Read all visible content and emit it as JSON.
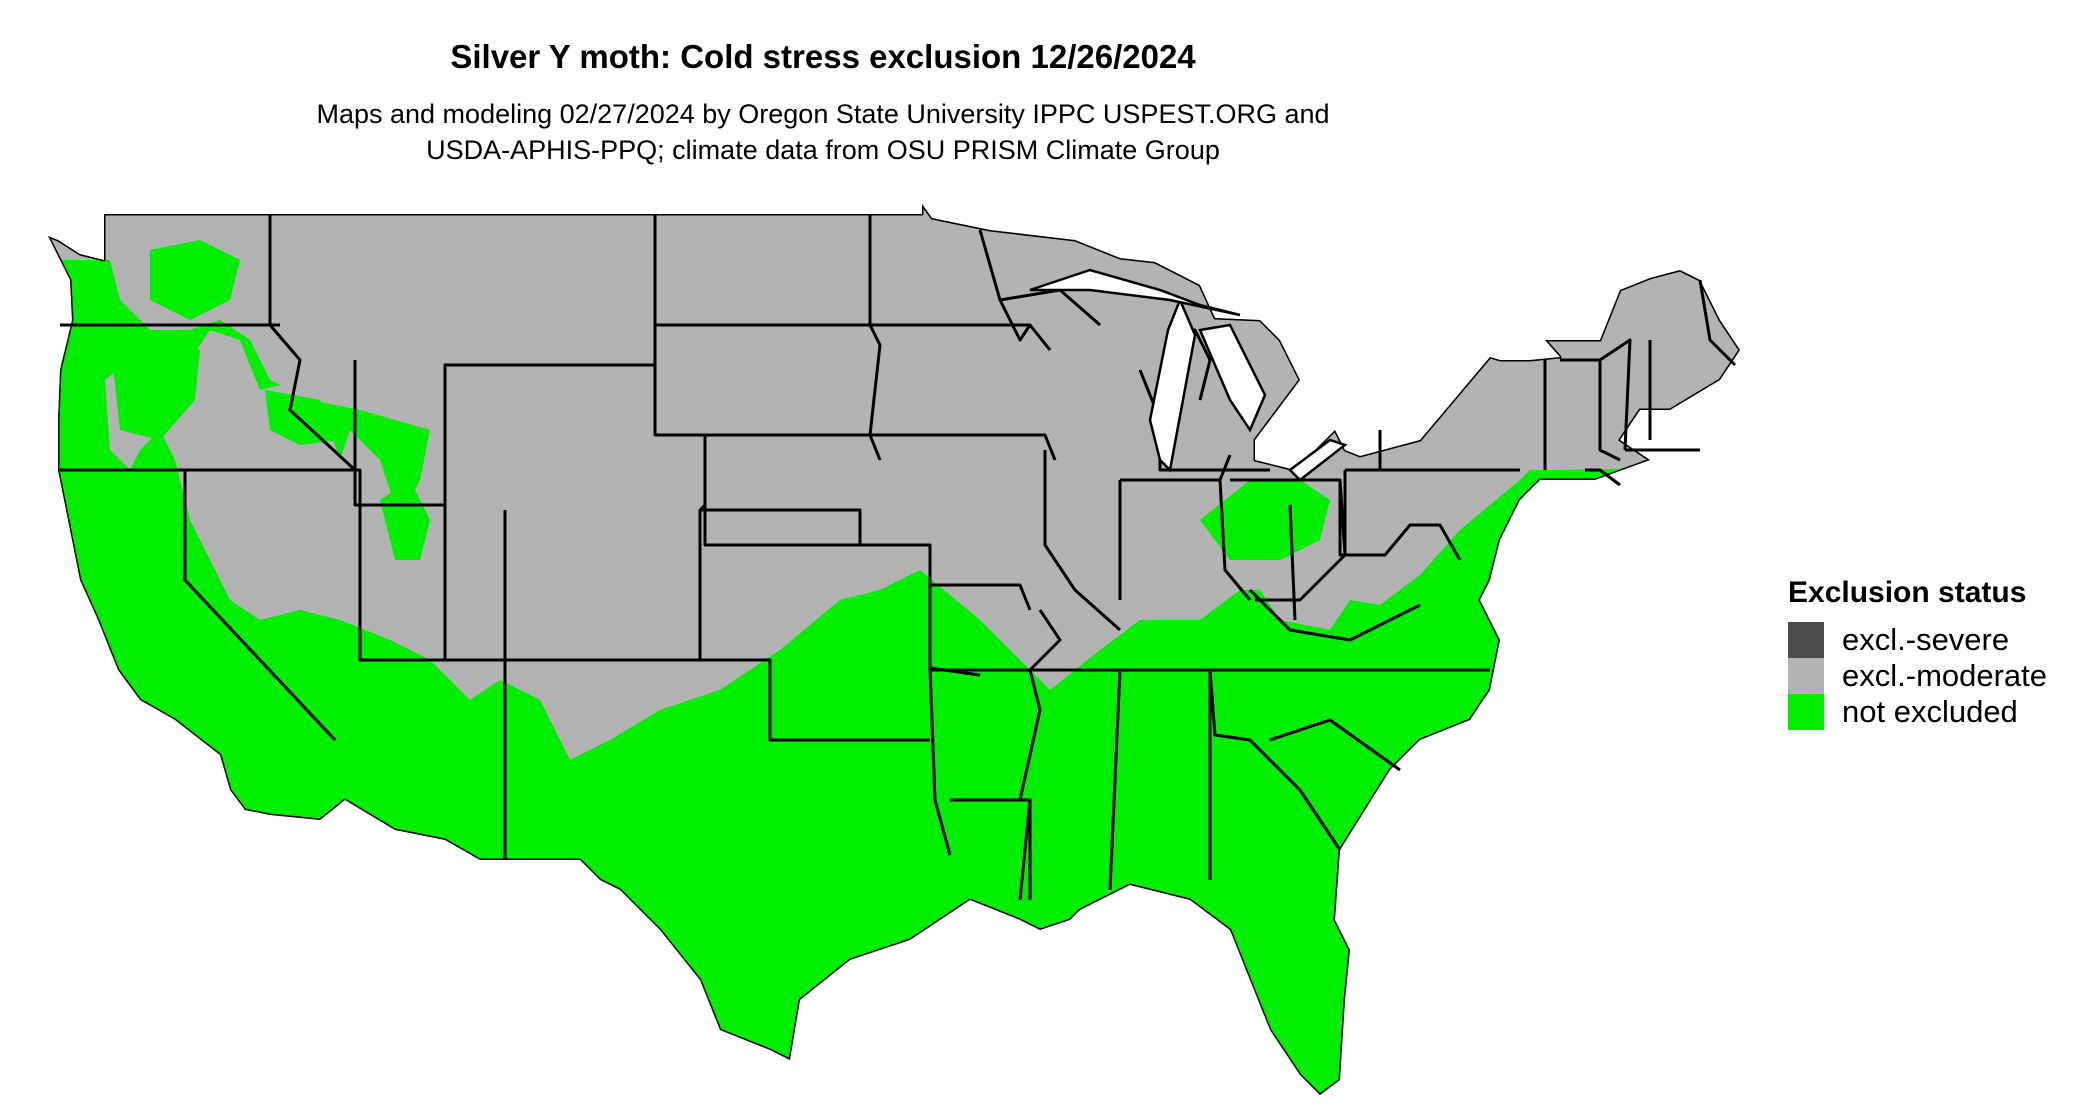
{
  "title": "Silver Y moth: Cold stress exclusion 12/26/2024",
  "subtitle_line1": "Maps and modeling 02/27/2024 by Oregon State University IPPC USPEST.ORG and",
  "subtitle_line2": "USDA-APHIS-PPQ; climate data from OSU PRISM Climate Group",
  "legend": {
    "title": "Exclusion status",
    "items": [
      {
        "label": "excl.-severe",
        "color": "#4d4d4d"
      },
      {
        "label": "excl.-moderate",
        "color": "#b3b3b3"
      },
      {
        "label": "not excluded",
        "color": "#00ee00"
      }
    ]
  },
  "colors": {
    "excluded_moderate": "#b3b3b3",
    "not_excluded": "#00ee00",
    "border": "#000000"
  }
}
